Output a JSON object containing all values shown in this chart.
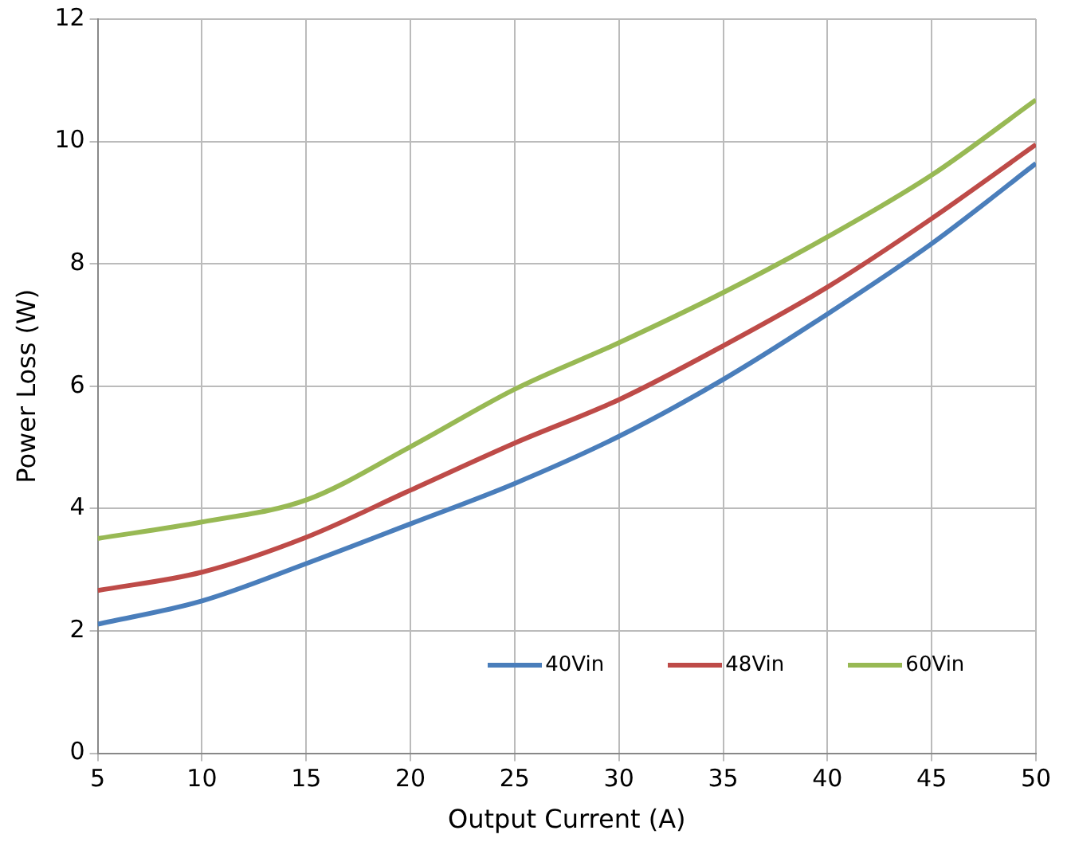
{
  "chart_data": {
    "type": "line",
    "xlabel": "Output Current (A)",
    "ylabel": "Power Loss (W)",
    "x": [
      5,
      10,
      15,
      20,
      25,
      30,
      35,
      40,
      45,
      50
    ],
    "series": [
      {
        "name": "40Vin",
        "color": "#4a7ebb",
        "values": [
          2.11,
          2.49,
          3.1,
          3.75,
          4.41,
          5.18,
          6.11,
          7.18,
          8.33,
          9.64
        ]
      },
      {
        "name": "48Vin",
        "color": "#be4b48",
        "values": [
          2.66,
          2.96,
          3.53,
          4.3,
          5.07,
          5.78,
          6.66,
          7.62,
          8.74,
          9.95
        ]
      },
      {
        "name": "60Vin",
        "color": "#98b954",
        "values": [
          3.51,
          3.78,
          4.14,
          5.01,
          5.95,
          6.71,
          7.53,
          8.44,
          9.45,
          10.68
        ]
      }
    ],
    "xlim": [
      5,
      50
    ],
    "xticks": [
      5,
      10,
      15,
      20,
      25,
      30,
      35,
      40,
      45,
      50
    ],
    "ylim": [
      0,
      12
    ],
    "yticks": [
      0,
      2,
      4,
      6,
      8,
      10,
      12
    ],
    "grid": true,
    "legend": "bottom",
    "marker": "none",
    "line_style": "solid"
  }
}
